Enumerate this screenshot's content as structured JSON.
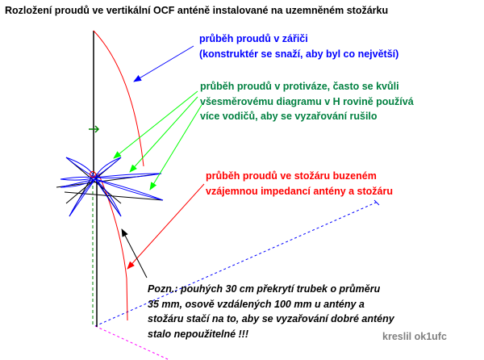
{
  "title": "Rozložení proudů ve vertikální OCF anténě instalované na uzemněném stožárku",
  "labels": {
    "radiator_current": [
      "průběh proudů v zářiči",
      "(konstruktér se snaží, aby byl co největší)"
    ],
    "counterpoise_current": [
      "průběh proudů v protiváze, často se kvůli",
      "všesměrovému diagramu v H rovině používá",
      "více vodičů, aby se vyzařování rušilo"
    ],
    "mast_current": [
      "průběh proudů ve stožáru buzeném",
      "vzájemnou impedancí antény a stožáru"
    ],
    "note": [
      "Pozn.: pouhých 30 cm překrytí trubek o průměru",
      "35 mm, osově vzdálených 100 mm u antény a",
      "stožáru stačí na to, aby se vyzařování dobré antény",
      "stalo nepoužitelné !!!"
    ],
    "credit": "kreslil ok1ufc"
  },
  "colors": {
    "radiator": "#0000ff",
    "counterpoise": "#008040",
    "mast": "#ff0000",
    "arrow_green": "#00ff00",
    "credit": "#808080"
  }
}
